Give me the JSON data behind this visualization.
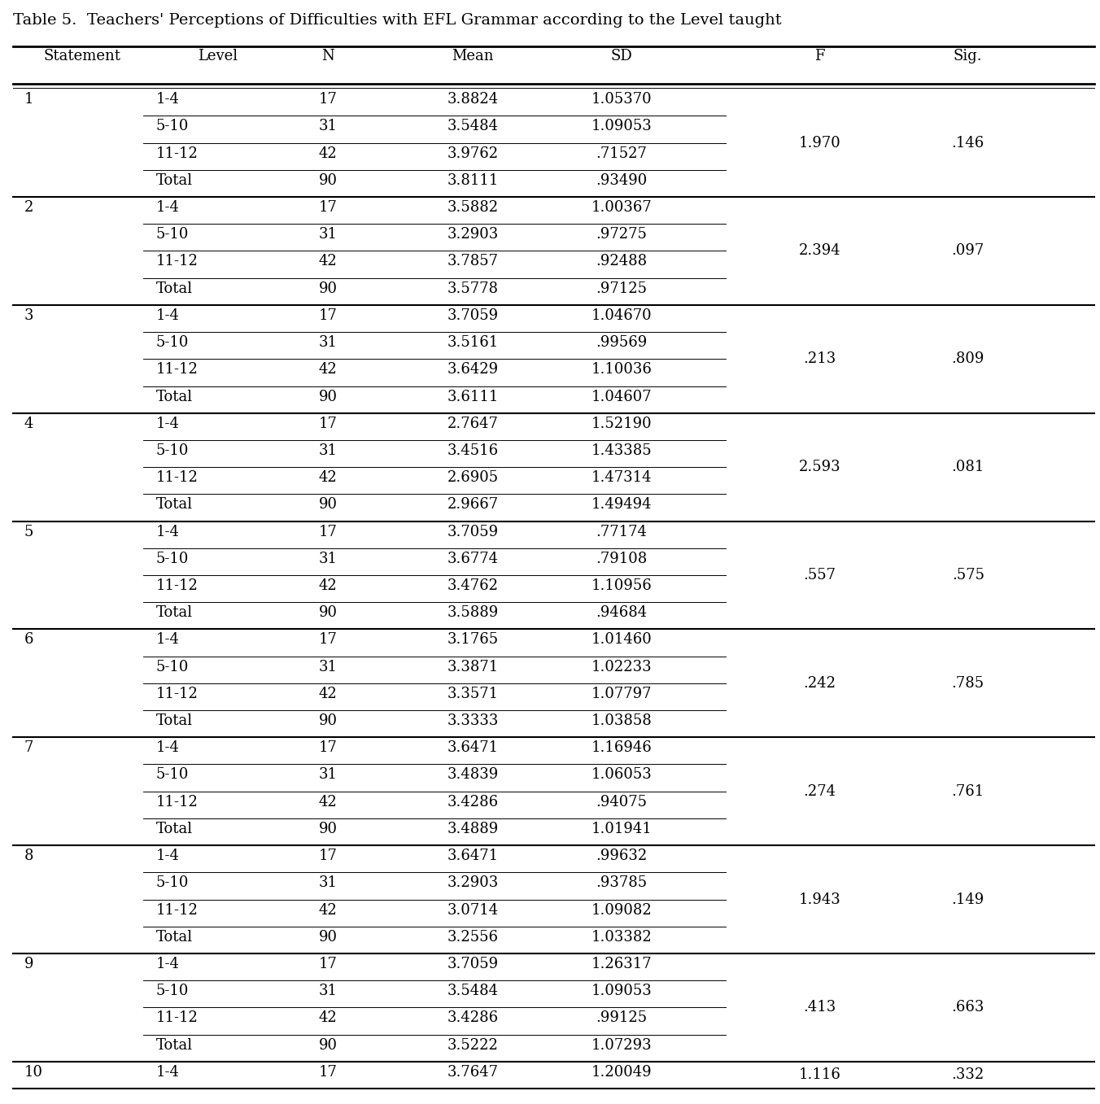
{
  "title": "Table 5.  Teachers' Perceptions of Difficulties with EFL Grammar according to the Level taught",
  "columns": [
    "Statement",
    "Level",
    "N",
    "Mean",
    "SD",
    "F",
    "Sig."
  ],
  "groups": [
    {
      "stmt": "1",
      "rows": [
        {
          "level": "1-4",
          "n": "17",
          "mean": "3.8824",
          "sd": "1.05370"
        },
        {
          "level": "5-10",
          "n": "31",
          "mean": "3.5484",
          "sd": "1.09053"
        },
        {
          "level": "11-12",
          "n": "42",
          "mean": "3.9762",
          "sd": ".71527"
        },
        {
          "level": "Total",
          "n": "90",
          "mean": "3.8111",
          "sd": ".93490"
        }
      ],
      "f": "1.970",
      "sig": ".146"
    },
    {
      "stmt": "2",
      "rows": [
        {
          "level": "1-4",
          "n": "17",
          "mean": "3.5882",
          "sd": "1.00367"
        },
        {
          "level": "5-10",
          "n": "31",
          "mean": "3.2903",
          "sd": ".97275"
        },
        {
          "level": "11-12",
          "n": "42",
          "mean": "3.7857",
          "sd": ".92488"
        },
        {
          "level": "Total",
          "n": "90",
          "mean": "3.5778",
          "sd": ".97125"
        }
      ],
      "f": "2.394",
      "sig": ".097"
    },
    {
      "stmt": "3",
      "rows": [
        {
          "level": "1-4",
          "n": "17",
          "mean": "3.7059",
          "sd": "1.04670"
        },
        {
          "level": "5-10",
          "n": "31",
          "mean": "3.5161",
          "sd": ".99569"
        },
        {
          "level": "11-12",
          "n": "42",
          "mean": "3.6429",
          "sd": "1.10036"
        },
        {
          "level": "Total",
          "n": "90",
          "mean": "3.6111",
          "sd": "1.04607"
        }
      ],
      "f": ".213",
      "sig": ".809"
    },
    {
      "stmt": "4",
      "rows": [
        {
          "level": "1-4",
          "n": "17",
          "mean": "2.7647",
          "sd": "1.52190"
        },
        {
          "level": "5-10",
          "n": "31",
          "mean": "3.4516",
          "sd": "1.43385"
        },
        {
          "level": "11-12",
          "n": "42",
          "mean": "2.6905",
          "sd": "1.47314"
        },
        {
          "level": "Total",
          "n": "90",
          "mean": "2.9667",
          "sd": "1.49494"
        }
      ],
      "f": "2.593",
      "sig": ".081"
    },
    {
      "stmt": "5",
      "rows": [
        {
          "level": "1-4",
          "n": "17",
          "mean": "3.7059",
          "sd": ".77174"
        },
        {
          "level": "5-10",
          "n": "31",
          "mean": "3.6774",
          "sd": ".79108"
        },
        {
          "level": "11-12",
          "n": "42",
          "mean": "3.4762",
          "sd": "1.10956"
        },
        {
          "level": "Total",
          "n": "90",
          "mean": "3.5889",
          "sd": ".94684"
        }
      ],
      "f": ".557",
      "sig": ".575"
    },
    {
      "stmt": "6",
      "rows": [
        {
          "level": "1-4",
          "n": "17",
          "mean": "3.1765",
          "sd": "1.01460"
        },
        {
          "level": "5-10",
          "n": "31",
          "mean": "3.3871",
          "sd": "1.02233"
        },
        {
          "level": "11-12",
          "n": "42",
          "mean": "3.3571",
          "sd": "1.07797"
        },
        {
          "level": "Total",
          "n": "90",
          "mean": "3.3333",
          "sd": "1.03858"
        }
      ],
      "f": ".242",
      "sig": ".785"
    },
    {
      "stmt": "7",
      "rows": [
        {
          "level": "1-4",
          "n": "17",
          "mean": "3.6471",
          "sd": "1.16946"
        },
        {
          "level": "5-10",
          "n": "31",
          "mean": "3.4839",
          "sd": "1.06053"
        },
        {
          "level": "11-12",
          "n": "42",
          "mean": "3.4286",
          "sd": ".94075"
        },
        {
          "level": "Total",
          "n": "90",
          "mean": "3.4889",
          "sd": "1.01941"
        }
      ],
      "f": ".274",
      "sig": ".761"
    },
    {
      "stmt": "8",
      "rows": [
        {
          "level": "1-4",
          "n": "17",
          "mean": "3.6471",
          "sd": ".99632"
        },
        {
          "level": "5-10",
          "n": "31",
          "mean": "3.2903",
          "sd": ".93785"
        },
        {
          "level": "11-12",
          "n": "42",
          "mean": "3.0714",
          "sd": "1.09082"
        },
        {
          "level": "Total",
          "n": "90",
          "mean": "3.2556",
          "sd": "1.03382"
        }
      ],
      "f": "1.943",
      "sig": ".149"
    },
    {
      "stmt": "9",
      "rows": [
        {
          "level": "1-4",
          "n": "17",
          "mean": "3.7059",
          "sd": "1.26317"
        },
        {
          "level": "5-10",
          "n": "31",
          "mean": "3.5484",
          "sd": "1.09053"
        },
        {
          "level": "11-12",
          "n": "42",
          "mean": "3.4286",
          "sd": ".99125"
        },
        {
          "level": "Total",
          "n": "90",
          "mean": "3.5222",
          "sd": "1.07293"
        }
      ],
      "f": ".413",
      "sig": ".663"
    },
    {
      "stmt": "10",
      "rows": [
        {
          "level": "1-4",
          "n": "17",
          "mean": "3.7647",
          "sd": "1.20049"
        }
      ],
      "f": "1.116",
      "sig": ".332"
    }
  ],
  "font_size": 13.0,
  "title_font_size": 14.0,
  "bg_color": "#ffffff",
  "text_color": "#000000",
  "line_color": "#000000"
}
